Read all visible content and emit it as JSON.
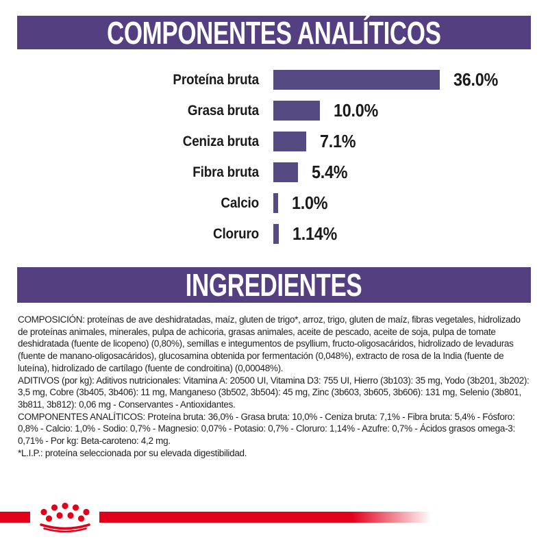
{
  "colors": {
    "banner_purple": "#543F80",
    "bar_purple": "#564A82",
    "brand_red": "#E2001A",
    "text_dark": "#1D1D1B",
    "banner_text": "#FFFFFF"
  },
  "analytical_header": {
    "title": "COMPONENTES ANALÍTICOS"
  },
  "chart_data": {
    "type": "bar",
    "orientation": "horizontal",
    "title": "COMPONENTES ANALÍTICOS",
    "categories": [
      "Proteína bruta",
      "Grasa bruta",
      "Ceniza bruta",
      "Fibra bruta",
      "Calcio",
      "Cloruro"
    ],
    "values": [
      36.0,
      10.0,
      7.1,
      5.4,
      1.0,
      1.14
    ],
    "value_labels": [
      "36.0%",
      "10.0%",
      "7.1%",
      "5.4%",
      "1.0%",
      "1.14%"
    ],
    "unit": "%",
    "bar_color": "#564A82",
    "xlim": [
      0,
      36
    ],
    "grid": false,
    "legend": "none"
  },
  "ingredients_header": {
    "title": "INGREDIENTES"
  },
  "body": {
    "composition": "COMPOSICIÓN: proteínas de ave deshidratadas, maíz, gluten de trigo*, arroz, trigo, gluten de maíz, fibras vegetales, hidrolizado de proteínas animales, minerales, pulpa de achicoria, grasas animales, aceite de pescado, aceite de soja, pulpa de tomate deshidratada (fuente de licopeno) (0,80%), semillas e integumentos de psyllium, fructo-oligosacáridos, hidrolizado de levaduras (fuente de manano-oligosacáridos), glucosamina obtenida por fermentación (0,048%), extracto de rosa de la India (fuente de luteína), hidrolizado de cartílago (fuente de condroitina) (0,00048%).",
    "additives": "ADITIVOS (por kg): Aditivos nutricionales: Vitamina A: 20500 UI, Vitamina D3: 755 UI, Hierro (3b103): 35 mg, Yodo (3b201, 3b202): 3,5 mg, Cobre (3b405, 3b406): 11 mg, Manganeso (3b502, 3b504): 45 mg, Zinc (3b603, 3b605, 3b606): 131 mg, Selenio (3b801, 3b811, 3b812): 0,06 mg - Conservantes - Antioxidantes.",
    "analytical_constituents": "COMPONENTES ANALÍTICOS: Proteína bruta: 36,0% - Grasa bruta: 10,0% - Ceniza bruta: 7,1% - Fibra bruta: 5,4% - Fósforo: 0,8% - Calcio: 1,0% - Sodio: 0,7% - Magnesio: 0,07% - Potasio: 0,7% - Cloruro: 1,14% - Azufre: 0,7% - Ácidos grasos omega-3: 0,71% - Por kg: Beta-caroteno: 4,2 mg.",
    "lip_note": "*L.I.P.: proteína seleccionada por su elevada digestibilidad."
  },
  "logo": {
    "name": "royal-canin-crown",
    "color": "#E2001A"
  }
}
